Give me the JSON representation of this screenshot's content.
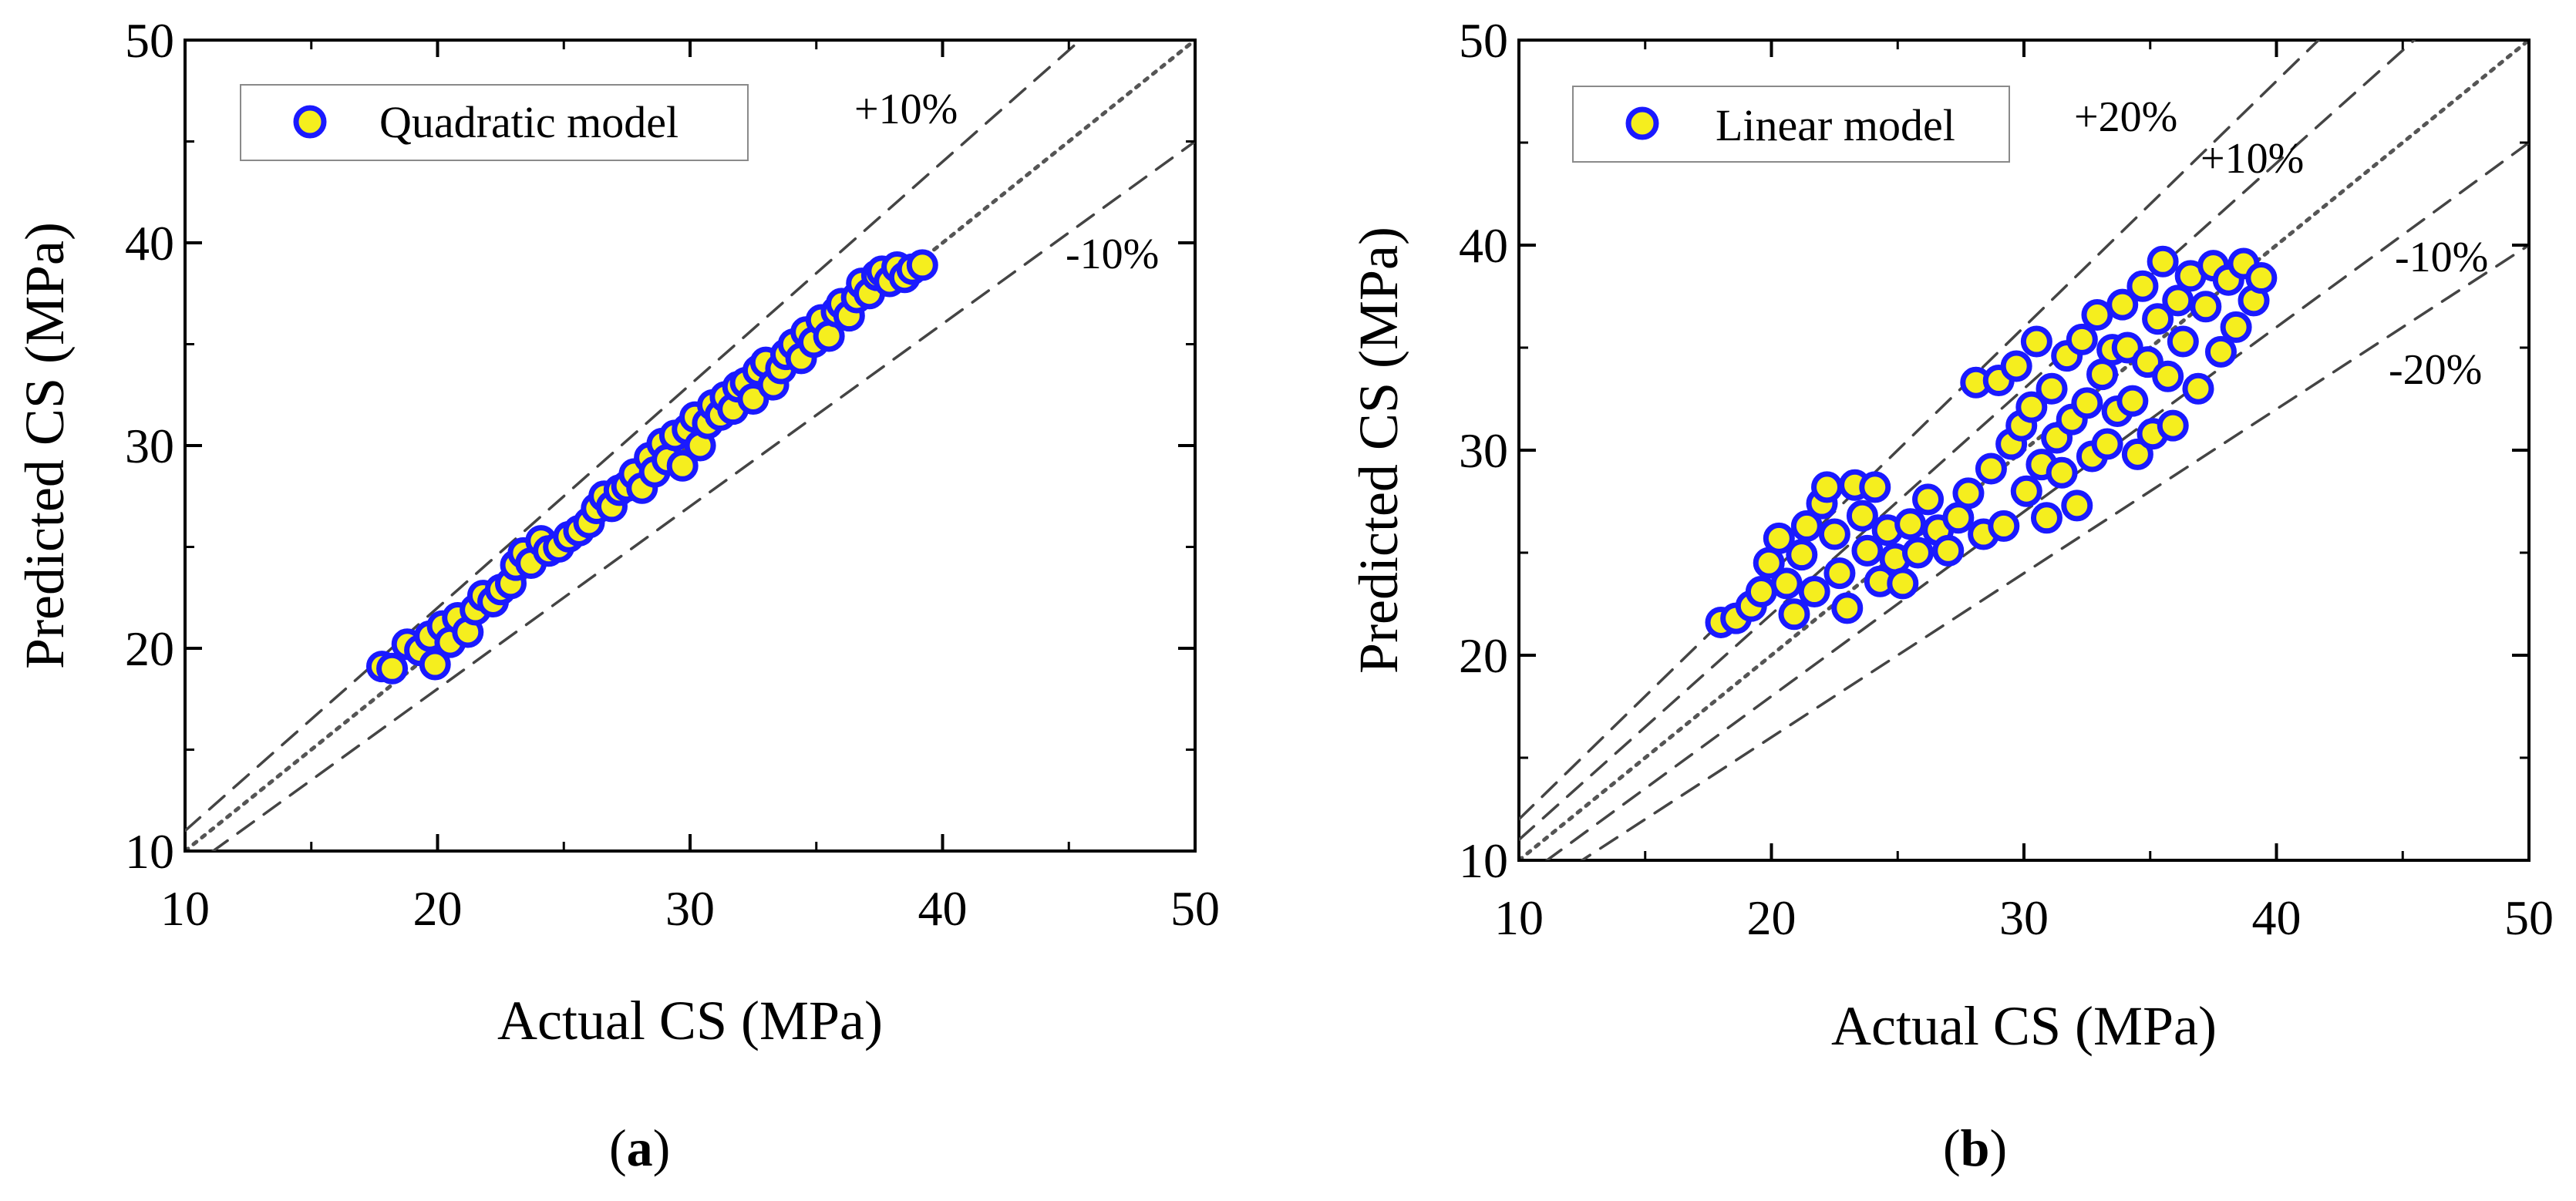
{
  "chart_data": [
    {
      "panel_label": "a",
      "type": "scatter",
      "xlabel": "Actual CS (MPa)",
      "ylabel": "Predicted CS (MPa)",
      "xlim": [
        10,
        50
      ],
      "ylim": [
        10,
        50
      ],
      "x_ticks": [
        10,
        20,
        30,
        40,
        50
      ],
      "y_ticks": [
        10,
        20,
        30,
        40,
        50
      ],
      "grid": false,
      "legend_position": "top-left",
      "marker_face_color": "#f5ee1e",
      "marker_edge_color": "#1a1aff",
      "reference_lines": [
        {
          "label": "",
          "slope": 1.0,
          "style": "dotted"
        },
        {
          "label": "+10%",
          "slope": 1.1,
          "style": "dashed"
        },
        {
          "label": "-10%",
          "slope": 0.9,
          "style": "dashed"
        }
      ],
      "series": [
        {
          "name": "Quadratic model",
          "points": [
            [
              17.8,
              19.1
            ],
            [
              18.2,
              19.0
            ],
            [
              18.8,
              20.2
            ],
            [
              19.3,
              19.9
            ],
            [
              19.7,
              20.6
            ],
            [
              19.9,
              19.2
            ],
            [
              20.2,
              21.1
            ],
            [
              20.5,
              20.3
            ],
            [
              20.8,
              21.5
            ],
            [
              21.2,
              20.8
            ],
            [
              21.5,
              21.9
            ],
            [
              21.8,
              22.6
            ],
            [
              22.2,
              22.3
            ],
            [
              22.5,
              22.9
            ],
            [
              22.9,
              23.2
            ],
            [
              23.1,
              24.1
            ],
            [
              23.4,
              24.7
            ],
            [
              23.7,
              24.2
            ],
            [
              24.1,
              25.3
            ],
            [
              24.4,
              24.8
            ],
            [
              24.8,
              25.0
            ],
            [
              25.2,
              25.5
            ],
            [
              25.6,
              25.8
            ],
            [
              26.0,
              26.2
            ],
            [
              26.3,
              26.9
            ],
            [
              26.6,
              27.5
            ],
            [
              26.9,
              27.0
            ],
            [
              27.2,
              27.8
            ],
            [
              27.5,
              28.0
            ],
            [
              27.8,
              28.6
            ],
            [
              28.1,
              27.9
            ],
            [
              28.4,
              29.4
            ],
            [
              28.6,
              28.7
            ],
            [
              28.9,
              30.1
            ],
            [
              29.1,
              29.3
            ],
            [
              29.4,
              30.5
            ],
            [
              29.7,
              29.0
            ],
            [
              29.9,
              30.8
            ],
            [
              30.2,
              31.4
            ],
            [
              30.4,
              30.0
            ],
            [
              30.7,
              31.1
            ],
            [
              30.9,
              32.0
            ],
            [
              31.2,
              31.5
            ],
            [
              31.4,
              32.4
            ],
            [
              31.7,
              31.8
            ],
            [
              31.9,
              32.9
            ],
            [
              32.2,
              33.1
            ],
            [
              32.5,
              32.3
            ],
            [
              32.7,
              33.7
            ],
            [
              33.0,
              34.1
            ],
            [
              33.3,
              33.0
            ],
            [
              33.6,
              33.8
            ],
            [
              33.8,
              34.5
            ],
            [
              34.1,
              35.0
            ],
            [
              34.4,
              34.3
            ],
            [
              34.6,
              35.6
            ],
            [
              34.9,
              35.1
            ],
            [
              35.2,
              36.2
            ],
            [
              35.5,
              35.4
            ],
            [
              35.8,
              36.6
            ],
            [
              36.0,
              37.0
            ],
            [
              36.3,
              36.4
            ],
            [
              36.6,
              37.3
            ],
            [
              36.8,
              38.0
            ],
            [
              37.1,
              37.5
            ],
            [
              37.4,
              38.4
            ],
            [
              37.6,
              38.6
            ],
            [
              37.9,
              38.1
            ],
            [
              38.2,
              38.8
            ],
            [
              38.5,
              38.3
            ],
            [
              38.8,
              38.7
            ],
            [
              39.2,
              38.9
            ]
          ]
        }
      ]
    },
    {
      "panel_label": "b",
      "type": "scatter",
      "xlabel": "Actual CS (MPa)",
      "ylabel": "Predicted CS (MPa)",
      "xlim": [
        10,
        50
      ],
      "ylim": [
        10,
        50
      ],
      "x_ticks": [
        10,
        20,
        30,
        40,
        50
      ],
      "y_ticks": [
        10,
        20,
        30,
        40,
        50
      ],
      "grid": false,
      "legend_position": "top-left",
      "marker_face_color": "#f5ee1e",
      "marker_edge_color": "#1a1aff",
      "reference_lines": [
        {
          "label": "",
          "slope": 1.0,
          "style": "dotted"
        },
        {
          "label": "+20%",
          "slope": 1.2,
          "style": "dashed"
        },
        {
          "label": "+10%",
          "slope": 1.1,
          "style": "dashed"
        },
        {
          "label": "-10%",
          "slope": 0.9,
          "style": "dashed"
        },
        {
          "label": "-20%",
          "slope": 0.8,
          "style": "dashed"
        }
      ],
      "series": [
        {
          "name": "Linear model",
          "points": [
            [
              18.0,
              21.6
            ],
            [
              18.6,
              21.8
            ],
            [
              19.2,
              22.4
            ],
            [
              19.6,
              23.1
            ],
            [
              19.9,
              24.5
            ],
            [
              20.3,
              25.7
            ],
            [
              20.6,
              23.5
            ],
            [
              20.9,
              22.0
            ],
            [
              21.2,
              24.9
            ],
            [
              21.4,
              26.3
            ],
            [
              21.7,
              23.1
            ],
            [
              22.0,
              27.4
            ],
            [
              22.2,
              28.2
            ],
            [
              22.5,
              25.9
            ],
            [
              22.7,
              24.0
            ],
            [
              23.0,
              22.3
            ],
            [
              23.3,
              28.3
            ],
            [
              23.6,
              26.8
            ],
            [
              23.8,
              25.1
            ],
            [
              24.1,
              28.2
            ],
            [
              24.3,
              23.6
            ],
            [
              24.6,
              26.1
            ],
            [
              24.9,
              24.7
            ],
            [
              25.2,
              23.5
            ],
            [
              25.5,
              26.4
            ],
            [
              25.8,
              25.0
            ],
            [
              26.2,
              27.6
            ],
            [
              26.6,
              26.1
            ],
            [
              27.0,
              25.1
            ],
            [
              27.4,
              26.7
            ],
            [
              27.8,
              27.9
            ],
            [
              28.1,
              33.3
            ],
            [
              28.4,
              25.9
            ],
            [
              28.7,
              29.1
            ],
            [
              29.0,
              33.4
            ],
            [
              29.2,
              26.3
            ],
            [
              29.5,
              30.3
            ],
            [
              29.7,
              34.1
            ],
            [
              29.9,
              31.2
            ],
            [
              30.1,
              28.0
            ],
            [
              30.3,
              32.1
            ],
            [
              30.5,
              35.3
            ],
            [
              30.7,
              29.3
            ],
            [
              30.9,
              26.7
            ],
            [
              31.1,
              33.0
            ],
            [
              31.3,
              30.6
            ],
            [
              31.5,
              28.9
            ],
            [
              31.7,
              34.6
            ],
            [
              31.9,
              31.5
            ],
            [
              32.1,
              27.3
            ],
            [
              32.3,
              35.4
            ],
            [
              32.5,
              32.3
            ],
            [
              32.7,
              29.7
            ],
            [
              32.9,
              36.6
            ],
            [
              33.1,
              33.7
            ],
            [
              33.3,
              30.3
            ],
            [
              33.5,
              34.9
            ],
            [
              33.7,
              31.9
            ],
            [
              33.9,
              37.1
            ],
            [
              34.1,
              35.0
            ],
            [
              34.3,
              32.4
            ],
            [
              34.5,
              29.8
            ],
            [
              34.7,
              38.0
            ],
            [
              34.9,
              34.3
            ],
            [
              35.1,
              30.8
            ],
            [
              35.3,
              36.4
            ],
            [
              35.5,
              39.2
            ],
            [
              35.7,
              33.6
            ],
            [
              35.9,
              31.2
            ],
            [
              36.1,
              37.3
            ],
            [
              36.3,
              35.3
            ],
            [
              36.6,
              38.5
            ],
            [
              36.9,
              33.0
            ],
            [
              37.2,
              37.0
            ],
            [
              37.5,
              39.0
            ],
            [
              37.8,
              34.8
            ],
            [
              38.1,
              38.3
            ],
            [
              38.4,
              36.0
            ],
            [
              38.7,
              39.1
            ],
            [
              39.1,
              37.3
            ],
            [
              39.4,
              38.4
            ]
          ]
        }
      ]
    }
  ]
}
